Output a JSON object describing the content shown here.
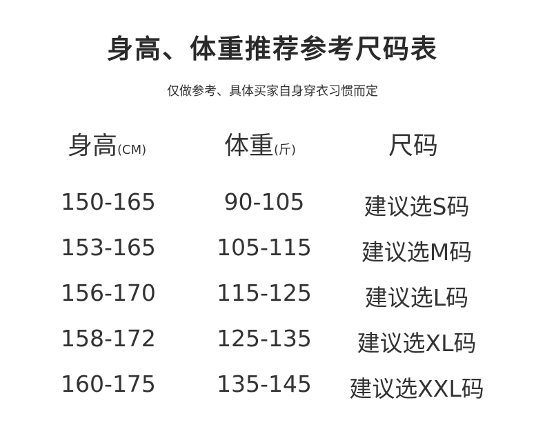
{
  "title": "身高、体重推荐参考尺码表",
  "subtitle": "仅做参考、具体买家自身穿衣习惯而定",
  "headers": [
    {
      "label": "身高",
      "unit": "(CM)"
    },
    {
      "label": "体重",
      "unit": "(斤)"
    },
    {
      "label": "尺码",
      "unit": ""
    }
  ],
  "rows": [
    [
      "150-165",
      "90-105",
      "建议选S码"
    ],
    [
      "153-165",
      "105-115",
      "建议选M码"
    ],
    [
      "156-170",
      "115-125",
      "建议选L码"
    ],
    [
      "158-172",
      "125-135",
      "建议选XL码"
    ],
    [
      "160-175",
      "135-145",
      "建议选XXL码"
    ]
  ]
}
